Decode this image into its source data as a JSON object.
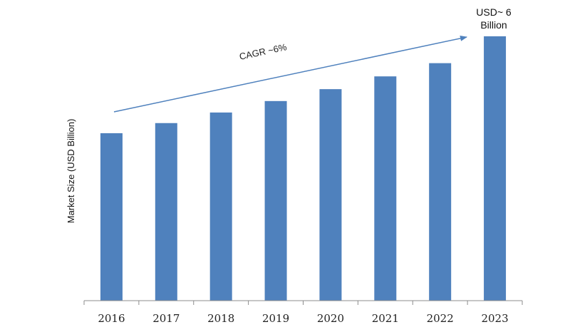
{
  "chart_data": {
    "type": "bar",
    "categories": [
      "2016",
      "2017",
      "2018",
      "2019",
      "2020",
      "2021",
      "2022",
      "2023"
    ],
    "values": [
      3.8,
      4.03,
      4.27,
      4.53,
      4.8,
      5.09,
      5.39,
      6.0
    ],
    "ylabel": "Market Size (USD Billion)",
    "xlabel": "",
    "ylim": [
      0,
      6.5
    ],
    "grid": false,
    "colors": {
      "bar": "#4f81bd",
      "arrow": "#4f81bd",
      "axis": "#8c8c8c"
    },
    "annotations": {
      "trend": "CAGR ~6%",
      "end_value_line1": "USD~ 6",
      "end_value_line2": "Billion"
    }
  }
}
